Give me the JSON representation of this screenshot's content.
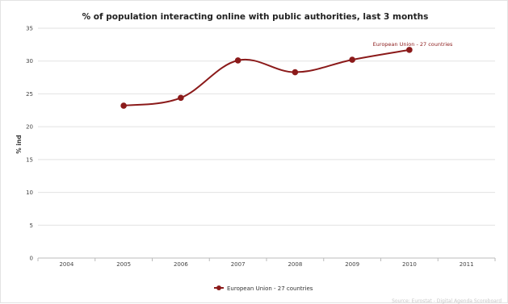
{
  "chart_data": {
    "type": "line",
    "title": "% of population interacting online with public authorities, last 3 months",
    "ylabel": "% ind",
    "xlabel": "",
    "categories": [
      "2004",
      "2005",
      "2006",
      "2007",
      "2008",
      "2009",
      "2010",
      "2011"
    ],
    "ylim": [
      0,
      35
    ],
    "yticks": [
      0,
      5,
      10,
      15,
      20,
      25,
      30,
      35
    ],
    "grid": true,
    "legend_position": "bottom-center",
    "series": [
      {
        "name": "European Union - 27 countries",
        "color": "#8b1a1a",
        "x": [
          "2005",
          "2006",
          "2007",
          "2008",
          "2009",
          "2010"
        ],
        "values": [
          23.2,
          24.4,
          30.1,
          28.3,
          30.2,
          31.7
        ]
      }
    ],
    "annotation": "European Union - 27 countries",
    "credit": "Source: Eurostat - Digital Agenda Scoreboard"
  }
}
